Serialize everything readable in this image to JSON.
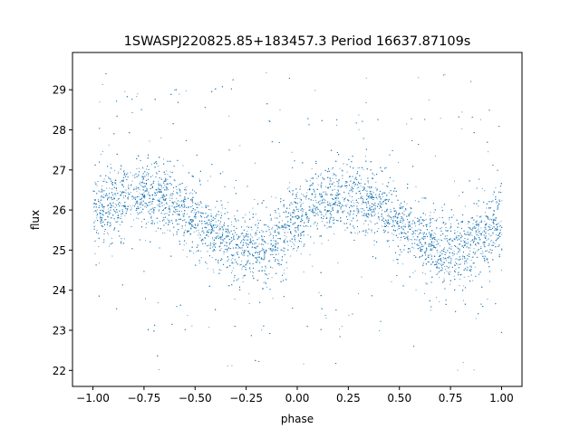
{
  "chart_data": {
    "type": "scatter",
    "title": "1SWASPJ220825.85+183457.3 Period 16637.87109s",
    "xlabel": "phase",
    "ylabel": "flux",
    "xlim": [
      -1.1,
      1.1
    ],
    "ylim": [
      21.6,
      29.93
    ],
    "xticks": [
      -1.0,
      -0.75,
      -0.5,
      -0.25,
      0.0,
      0.25,
      0.5,
      0.75,
      1.0
    ],
    "xtick_labels": [
      "−1.00",
      "−0.75",
      "−0.50",
      "−0.25",
      "0.00",
      "0.25",
      "0.50",
      "0.75",
      "1.00"
    ],
    "yticks": [
      22,
      23,
      24,
      25,
      26,
      27,
      28,
      29
    ],
    "ytick_labels": [
      "22",
      "23",
      "24",
      "25",
      "26",
      "27",
      "28",
      "29"
    ],
    "grid": false,
    "legend": "none",
    "marker_color": "#1f77b4",
    "binned_trend": {
      "phase": [
        -1.0,
        -0.9,
        -0.8,
        -0.7,
        -0.6,
        -0.5,
        -0.4,
        -0.3,
        -0.2,
        -0.1,
        0.0,
        0.1,
        0.2,
        0.3,
        0.4,
        0.5,
        0.6,
        0.7,
        0.8,
        0.9,
        1.0
      ],
      "flux": [
        25.9,
        26.2,
        26.4,
        26.4,
        26.2,
        25.8,
        25.4,
        25.1,
        25.0,
        25.3,
        25.8,
        26.2,
        26.4,
        26.4,
        26.1,
        25.7,
        25.3,
        25.0,
        25.0,
        25.3,
        25.7
      ]
    },
    "scatter_sigma": 0.4,
    "data_range_y": [
      22.0,
      29.5
    ]
  }
}
